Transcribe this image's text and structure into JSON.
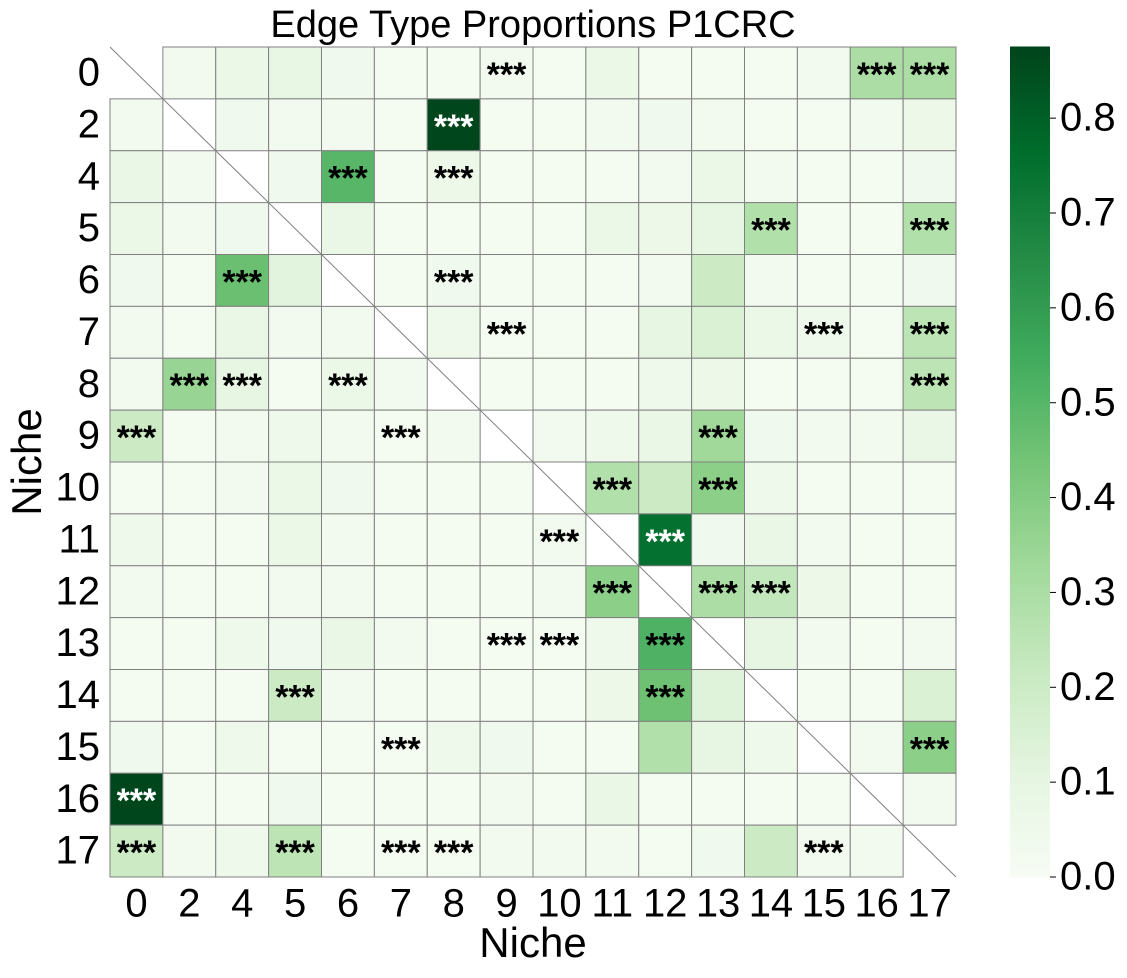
{
  "chart_data": {
    "type": "heatmap",
    "title": "Edge Type Proportions P1CRC",
    "x_label": "Niche",
    "y_label": "Niche",
    "categories": [
      "0",
      "2",
      "4",
      "5",
      "6",
      "7",
      "8",
      "9",
      "10",
      "11",
      "12",
      "13",
      "14",
      "15",
      "16",
      "17"
    ],
    "colormap": "Greens",
    "vlim": [
      0,
      0.875
    ],
    "colorbar_ticks": [
      {
        "value": 0,
        "label": "0.0"
      },
      0.1,
      0.2,
      0.3,
      0.4,
      0.5,
      0.6,
      0.7,
      0.8
    ],
    "values": [
      [
        null,
        0.03,
        0.07,
        0.09,
        0.04,
        0.02,
        0.02,
        0.03,
        0.02,
        0.07,
        0.02,
        0.02,
        0.02,
        0.03,
        0.3,
        0.3
      ],
      [
        0.03,
        null,
        0.04,
        0.03,
        0.03,
        0.02,
        0.87,
        0.02,
        0.02,
        0.03,
        0.04,
        0.03,
        0.02,
        0.02,
        0.03,
        0.06
      ],
      [
        0.08,
        0.03,
        null,
        0.04,
        0.5,
        0.02,
        0.06,
        0.02,
        0.02,
        0.02,
        0.03,
        0.07,
        0.03,
        0.02,
        0.02,
        0.04
      ],
      [
        0.07,
        0.03,
        0.04,
        null,
        0.08,
        0.02,
        0.02,
        0.02,
        0.02,
        0.07,
        0.06,
        0.1,
        0.28,
        0.02,
        0.02,
        0.28
      ],
      [
        0.04,
        0.02,
        0.46,
        0.12,
        null,
        0.02,
        0.04,
        0.02,
        0.02,
        0.02,
        0.03,
        0.2,
        0.03,
        0.02,
        0.02,
        0.04
      ],
      [
        0.03,
        0.02,
        0.08,
        0.03,
        0.03,
        null,
        0.05,
        0.02,
        0.02,
        0.02,
        0.1,
        0.15,
        0.07,
        0.05,
        0.02,
        0.25
      ],
      [
        0.03,
        0.35,
        0.1,
        0.02,
        0.07,
        0.03,
        null,
        0.02,
        0.02,
        0.02,
        0.05,
        0.06,
        0.02,
        0.02,
        0.02,
        0.25
      ],
      [
        0.2,
        0.02,
        0.03,
        0.05,
        0.03,
        0.02,
        0.03,
        null,
        0.03,
        0.05,
        0.08,
        0.33,
        0.04,
        0.03,
        0.03,
        0.08
      ],
      [
        0.02,
        0.02,
        0.03,
        0.07,
        0.04,
        0.02,
        0.02,
        0.02,
        null,
        0.28,
        0.2,
        0.38,
        0.05,
        0.02,
        0.02,
        0.02
      ],
      [
        0.05,
        0.02,
        0.02,
        0.07,
        0.03,
        0.02,
        0.02,
        0.02,
        0.03,
        null,
        0.75,
        0.04,
        0.08,
        0.03,
        0.02,
        0.02
      ],
      [
        0.03,
        0.02,
        0.02,
        0.03,
        0.03,
        0.02,
        0.02,
        0.02,
        0.03,
        0.38,
        null,
        0.3,
        0.23,
        0.06,
        0.02,
        0.02
      ],
      [
        0.02,
        0.02,
        0.05,
        0.04,
        0.08,
        0.03,
        0.02,
        0.02,
        0.02,
        0.05,
        0.52,
        null,
        0.1,
        0.03,
        0.02,
        0.03
      ],
      [
        0.02,
        0.02,
        0.02,
        0.2,
        0.03,
        0.02,
        0.02,
        0.02,
        0.02,
        0.06,
        0.45,
        0.13,
        null,
        0.02,
        0.02,
        0.15
      ],
      [
        0.04,
        0.02,
        0.05,
        0.02,
        0.02,
        0.02,
        0.05,
        0.04,
        0.02,
        0.02,
        0.28,
        0.1,
        0.05,
        null,
        0.03,
        0.38
      ],
      [
        0.87,
        0.02,
        0.02,
        0.04,
        0.02,
        0.02,
        0.02,
        0.03,
        0.02,
        0.08,
        0.02,
        0.02,
        0.02,
        0.02,
        null,
        0.03
      ],
      [
        0.2,
        0.03,
        0.05,
        0.25,
        0.02,
        0.02,
        0.02,
        0.03,
        0.03,
        0.03,
        0.02,
        0.04,
        0.2,
        0.03,
        0.03,
        null
      ]
    ],
    "annotations": [
      [
        null,
        null,
        null,
        null,
        null,
        null,
        null,
        "***",
        null,
        null,
        null,
        null,
        null,
        null,
        "***",
        "***"
      ],
      [
        null,
        null,
        null,
        null,
        null,
        null,
        "***",
        null,
        null,
        null,
        null,
        null,
        null,
        null,
        null,
        null
      ],
      [
        null,
        null,
        null,
        null,
        "***",
        null,
        "***",
        null,
        null,
        null,
        null,
        null,
        null,
        null,
        null,
        null
      ],
      [
        null,
        null,
        null,
        null,
        null,
        null,
        null,
        null,
        null,
        null,
        null,
        null,
        "***",
        null,
        null,
        "***"
      ],
      [
        null,
        null,
        "***",
        null,
        null,
        null,
        "***",
        null,
        null,
        null,
        null,
        null,
        null,
        null,
        null,
        null
      ],
      [
        null,
        null,
        null,
        null,
        null,
        null,
        null,
        "***",
        null,
        null,
        null,
        null,
        null,
        "***",
        null,
        "***"
      ],
      [
        null,
        "***",
        "***",
        null,
        "***",
        null,
        null,
        null,
        null,
        null,
        null,
        null,
        null,
        null,
        null,
        "***"
      ],
      [
        "***",
        null,
        null,
        null,
        null,
        "***",
        null,
        null,
        null,
        null,
        null,
        "***",
        null,
        null,
        null,
        null
      ],
      [
        null,
        null,
        null,
        null,
        null,
        null,
        null,
        null,
        null,
        "***",
        null,
        "***",
        null,
        null,
        null,
        null
      ],
      [
        null,
        null,
        null,
        null,
        null,
        null,
        null,
        null,
        "***",
        null,
        "***",
        null,
        null,
        null,
        null,
        null
      ],
      [
        null,
        null,
        null,
        null,
        null,
        null,
        null,
        null,
        null,
        "***",
        null,
        "***",
        "***",
        null,
        null,
        null
      ],
      [
        null,
        null,
        null,
        null,
        null,
        null,
        null,
        "***",
        "***",
        null,
        "***",
        null,
        null,
        null,
        null,
        null
      ],
      [
        null,
        null,
        null,
        "***",
        null,
        null,
        null,
        null,
        null,
        null,
        "***",
        null,
        null,
        null,
        null,
        null
      ],
      [
        null,
        null,
        null,
        null,
        null,
        "***",
        null,
        null,
        null,
        null,
        null,
        null,
        null,
        null,
        null,
        "***"
      ],
      [
        "***",
        null,
        null,
        null,
        null,
        null,
        null,
        null,
        null,
        null,
        null,
        null,
        null,
        null,
        null,
        null
      ],
      [
        "***",
        null,
        null,
        "***",
        null,
        "***",
        "***",
        null,
        null,
        null,
        null,
        null,
        null,
        "***",
        null,
        null
      ]
    ]
  }
}
